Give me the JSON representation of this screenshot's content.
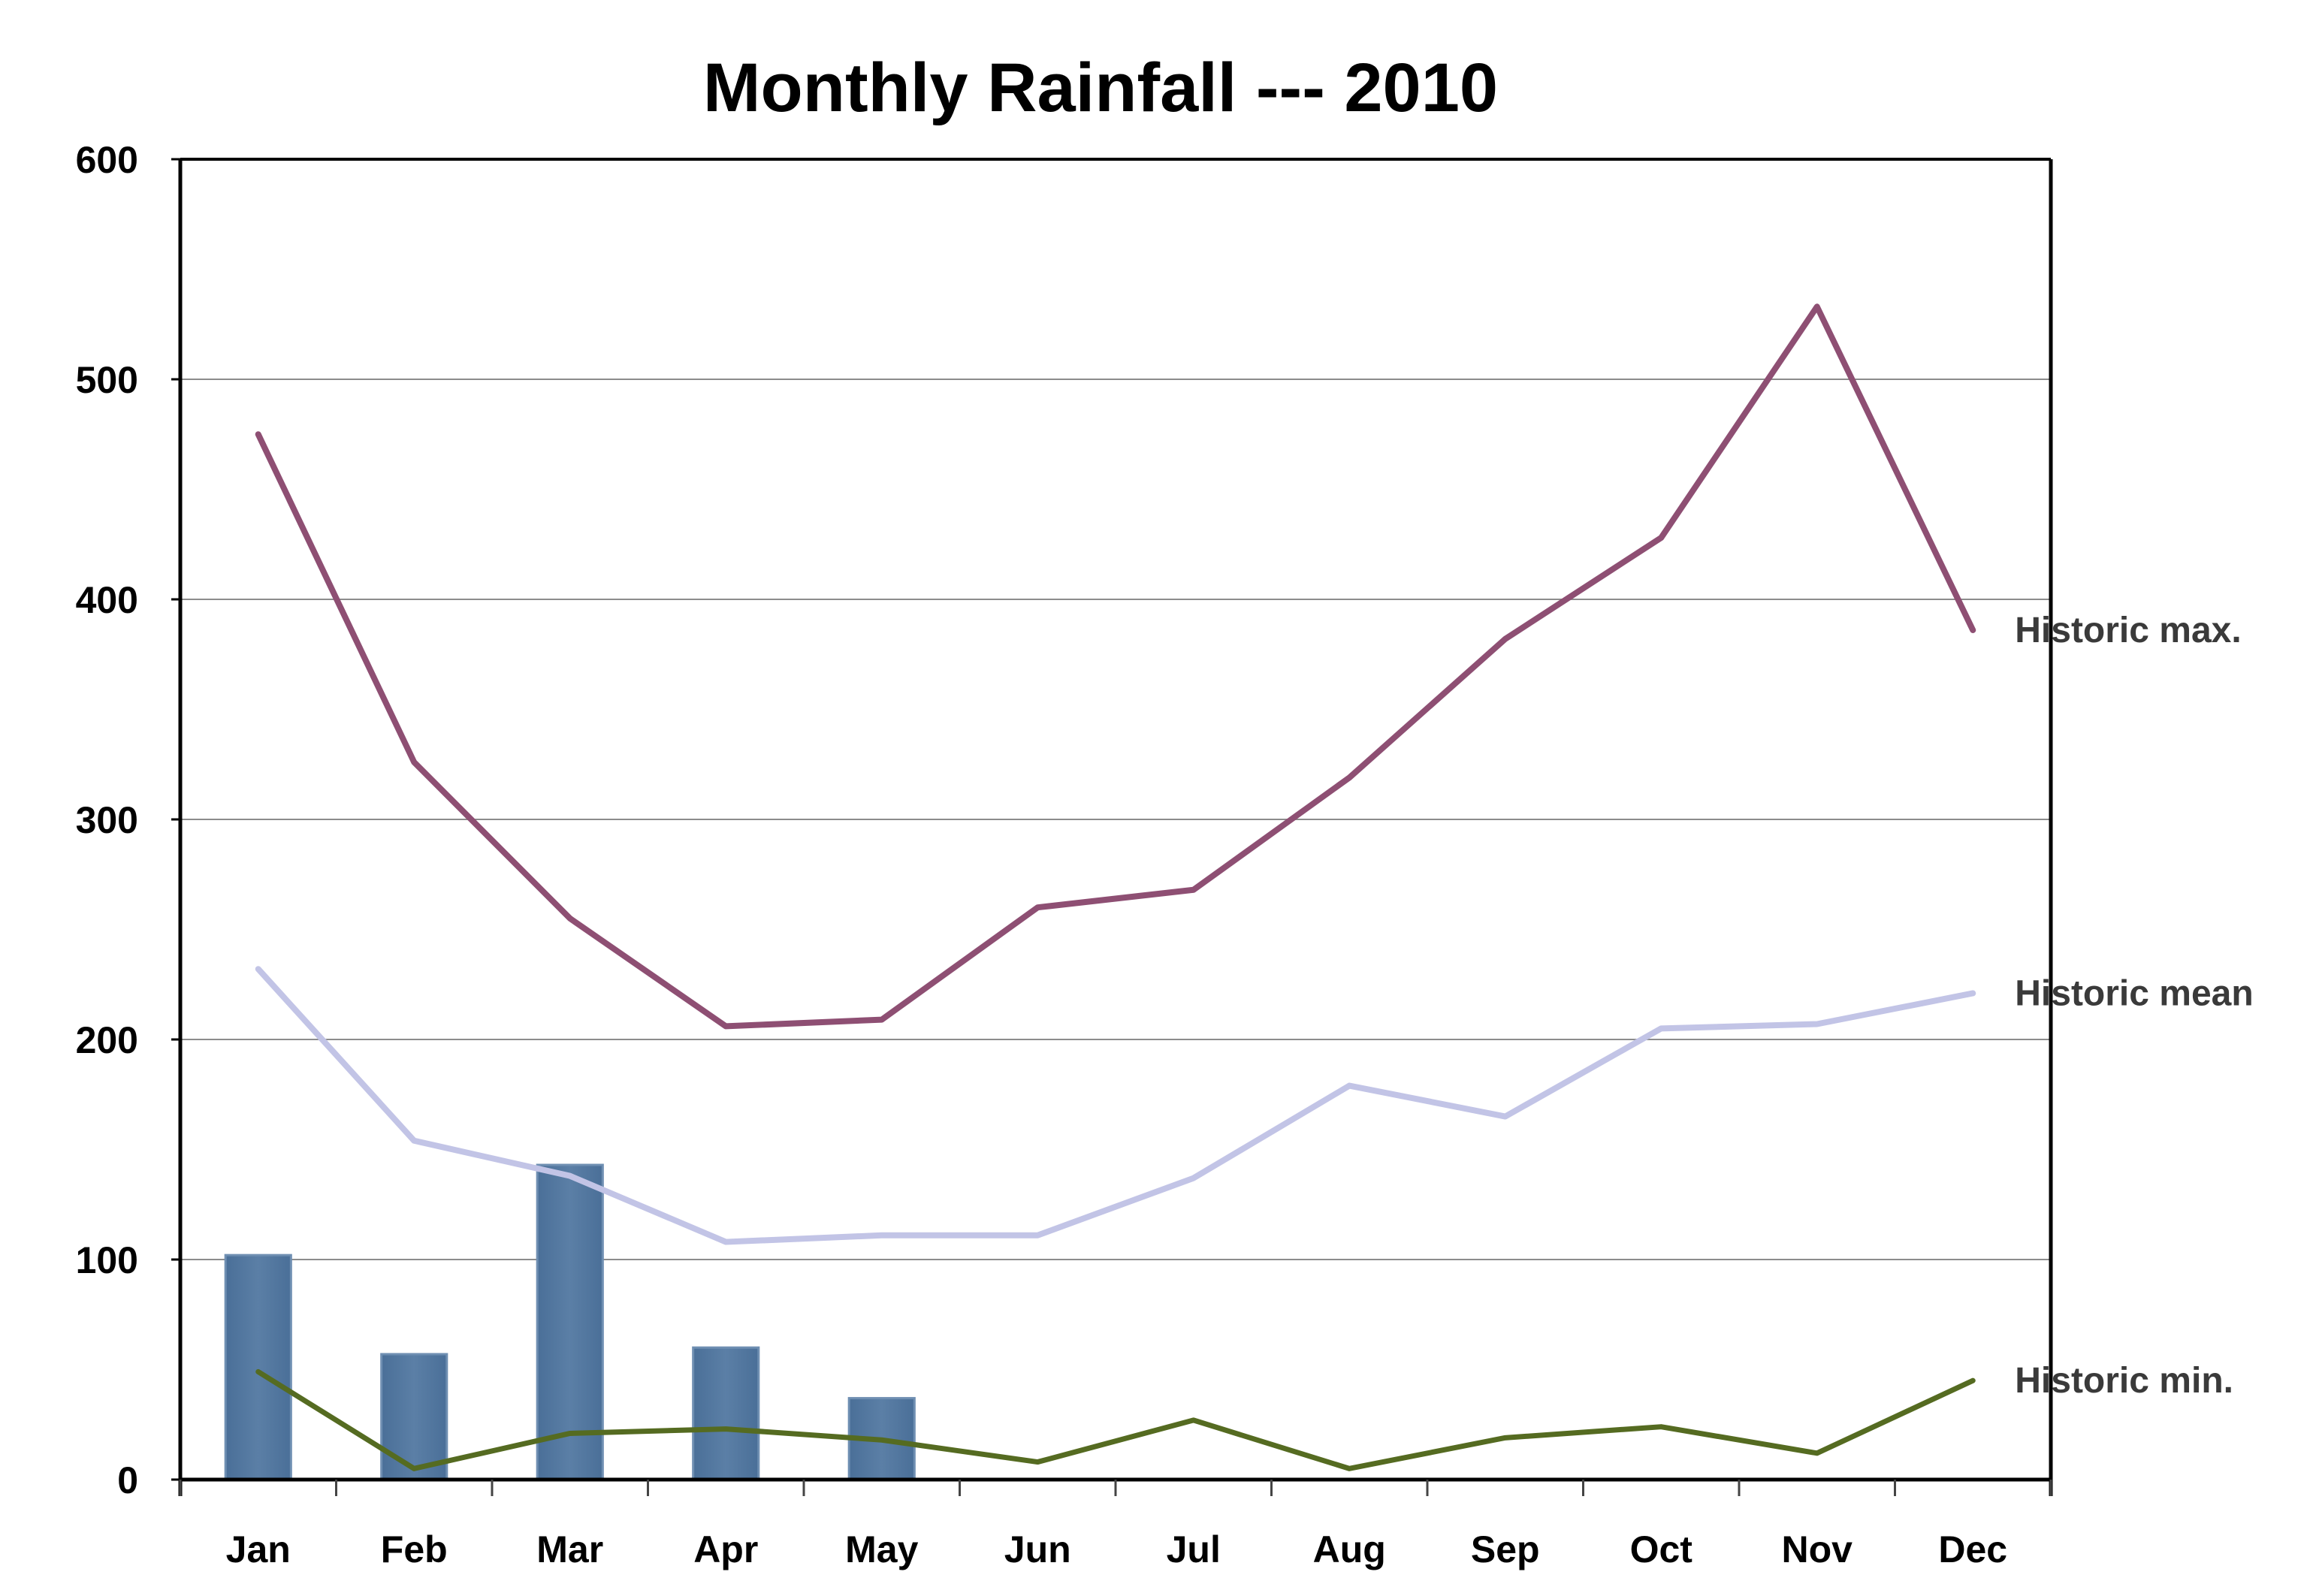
{
  "chart_data": {
    "type": "bar",
    "title": "Monthly Rainfall --- 2010",
    "xlabel": "",
    "ylabel": "",
    "ylim": [
      0,
      600
    ],
    "yticks": [
      "0",
      "100",
      "200",
      "300",
      "400",
      "500",
      "600"
    ],
    "grid": true,
    "categories": [
      "Jan",
      "Feb",
      "Mar",
      "Apr",
      "May",
      "Jun",
      "Jul",
      "Aug",
      "Sep",
      "Oct",
      "Nov",
      "Dec"
    ],
    "bars": {
      "values": [
        102,
        57,
        143,
        60,
        37,
        null,
        null,
        null,
        null,
        null,
        null,
        null
      ],
      "color": "#5b7fa6"
    },
    "series": [
      {
        "name": "Historic max.",
        "type": "line",
        "color": "#8e4f73",
        "values": [
          475,
          326,
          255,
          206,
          209,
          260,
          268,
          319,
          382,
          428,
          533,
          386
        ]
      },
      {
        "name": "Historic mean",
        "type": "line",
        "color": "#c2c4e6",
        "values": [
          232,
          154,
          138,
          108,
          111,
          111,
          137,
          179,
          165,
          205,
          207,
          221
        ]
      },
      {
        "name": "Historic min.",
        "type": "line",
        "color": "#556b21",
        "values": [
          49,
          5,
          21,
          23,
          18,
          8,
          27,
          5,
          19,
          24,
          12,
          45
        ]
      }
    ]
  }
}
